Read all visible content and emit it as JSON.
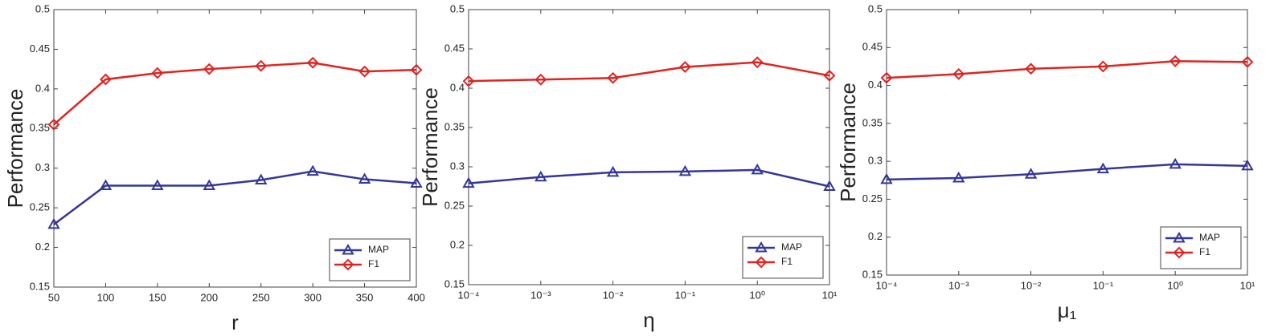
{
  "chart_data": [
    {
      "type": "line",
      "xlabel": "r",
      "ylabel": "Performance",
      "xscale": "linear",
      "grid": false,
      "legend": "lower right",
      "x": [
        50,
        100,
        150,
        200,
        250,
        300,
        350,
        400
      ],
      "xlim": [
        50,
        400
      ],
      "xticks": [
        50,
        100,
        150,
        200,
        250,
        300,
        350,
        400
      ],
      "ylim": [
        0.15,
        0.5
      ],
      "yticks": [
        0.15,
        0.2,
        0.25,
        0.3,
        0.35,
        0.4,
        0.45,
        0.5
      ],
      "series": [
        {
          "name": "MAP",
          "color": "#33369a",
          "marker": "triangle",
          "values": [
            0.229,
            0.278,
            0.278,
            0.278,
            0.285,
            0.296,
            0.286,
            0.281
          ]
        },
        {
          "name": "F1",
          "color": "#e0231f",
          "marker": "diamond",
          "values": [
            0.355,
            0.412,
            0.42,
            0.425,
            0.429,
            0.433,
            0.422,
            0.424
          ]
        }
      ]
    },
    {
      "type": "line",
      "xlabel": "η",
      "ylabel": "Performance",
      "xscale": "log",
      "grid": false,
      "legend": "lower right",
      "x": [
        0.0001,
        0.001,
        0.01,
        0.1,
        1,
        10
      ],
      "xlim": [
        0.0001,
        10
      ],
      "xticks": [
        {
          "value": 0.0001,
          "label": "10⁻⁴"
        },
        {
          "value": 0.001,
          "label": "10⁻³"
        },
        {
          "value": 0.01,
          "label": "10⁻²"
        },
        {
          "value": 0.1,
          "label": "10⁻¹"
        },
        {
          "value": 1,
          "label": "10⁰"
        },
        {
          "value": 10,
          "label": "10¹"
        }
      ],
      "ylim": [
        0.15,
        0.5
      ],
      "yticks": [
        0.15,
        0.2,
        0.25,
        0.3,
        0.35,
        0.4,
        0.45,
        0.5
      ],
      "series": [
        {
          "name": "MAP",
          "color": "#33369a",
          "marker": "triangle",
          "values": [
            0.279,
            0.287,
            0.293,
            0.294,
            0.296,
            0.275
          ]
        },
        {
          "name": "F1",
          "color": "#e0231f",
          "marker": "diamond",
          "values": [
            0.409,
            0.411,
            0.413,
            0.427,
            0.433,
            0.416
          ]
        }
      ]
    },
    {
      "type": "line",
      "xlabel": "μ₁",
      "ylabel": "Performance",
      "xscale": "log",
      "grid": false,
      "legend": "lower right",
      "x": [
        0.0001,
        0.001,
        0.01,
        0.1,
        1,
        10
      ],
      "xlim": [
        0.0001,
        10
      ],
      "xticks": [
        {
          "value": 0.0001,
          "label": "10⁻⁴"
        },
        {
          "value": 0.001,
          "label": "10⁻³"
        },
        {
          "value": 0.01,
          "label": "10⁻²"
        },
        {
          "value": 0.1,
          "label": "10⁻¹"
        },
        {
          "value": 1,
          "label": "10⁰"
        },
        {
          "value": 10,
          "label": "10¹"
        }
      ],
      "ylim": [
        0.15,
        0.5
      ],
      "yticks": [
        0.15,
        0.2,
        0.25,
        0.3,
        0.35,
        0.4,
        0.45,
        0.5
      ],
      "series": [
        {
          "name": "MAP",
          "color": "#33369a",
          "marker": "triangle",
          "values": [
            0.276,
            0.278,
            0.283,
            0.29,
            0.296,
            0.294
          ]
        },
        {
          "name": "F1",
          "color": "#e0231f",
          "marker": "diamond",
          "values": [
            0.41,
            0.415,
            0.422,
            0.425,
            0.432,
            0.431
          ]
        }
      ]
    }
  ]
}
